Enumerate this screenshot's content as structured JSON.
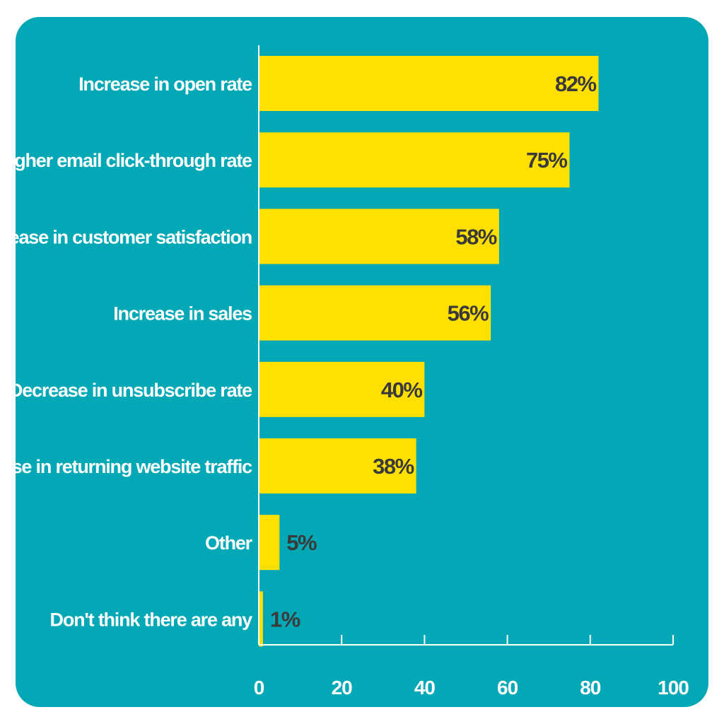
{
  "chart_data": {
    "type": "bar",
    "orientation": "horizontal",
    "categories": [
      "Increase in open rate",
      "Higher email click-through rate",
      "Increase in customer satisfaction",
      "Increase in sales",
      "Decrease in unsubscribe rate",
      "Increase in returning website traffic",
      "Other",
      "Don't think there are any"
    ],
    "values": [
      82,
      75,
      58,
      56,
      40,
      38,
      5,
      1
    ],
    "value_labels": [
      "82%",
      "75%",
      "58%",
      "56%",
      "40%",
      "38%",
      "5%",
      "1%"
    ],
    "x_ticks": [
      "0",
      "20",
      "40",
      "60",
      "80",
      "100"
    ],
    "xlim": [
      0,
      100
    ],
    "title": "",
    "xlabel": "",
    "ylabel": "",
    "grid": false,
    "colors": {
      "background": "#02a8b6",
      "bar": "#ffe000",
      "value_text": "#3a3a3a",
      "text": "#ffffff"
    }
  }
}
